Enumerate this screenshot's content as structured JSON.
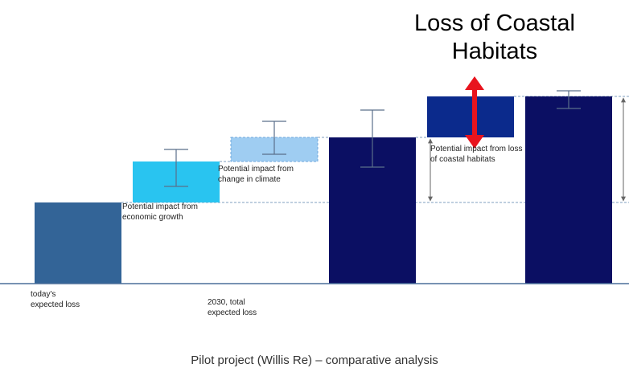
{
  "chart_data": {
    "type": "waterfall",
    "title": "Loss of Coastal Habitats",
    "caption": "Pilot project (Willis Re) – comparative analysis",
    "measure": [
      "absolute",
      "relative",
      "relative",
      "total",
      "relative",
      "total"
    ],
    "values": [
      101,
      51,
      30,
      182,
      51,
      233
    ],
    "colors": [
      "#336497",
      "#29c4f0",
      "#9fcdf2",
      "#0b0f63",
      "#0b2a8c",
      "#0b0f63"
    ],
    "error_low": [
      null,
      121,
      161,
      145,
      null,
      218
    ],
    "error_high": [
      null,
      167,
      202,
      216,
      null,
      240
    ],
    "ylim": [
      0,
      240
    ],
    "annotations": [
      {
        "text": "Potential impact from economic growth",
        "bar": 1
      },
      {
        "text": "Potential impact from change in climate",
        "bar": 2
      },
      {
        "text": "Potential impact from loss of coastal habitats",
        "bar": 4
      },
      {
        "text": "today's expected loss",
        "bar": 0
      },
      {
        "text": "2030, total expected loss",
        "bar": 3
      }
    ]
  }
}
